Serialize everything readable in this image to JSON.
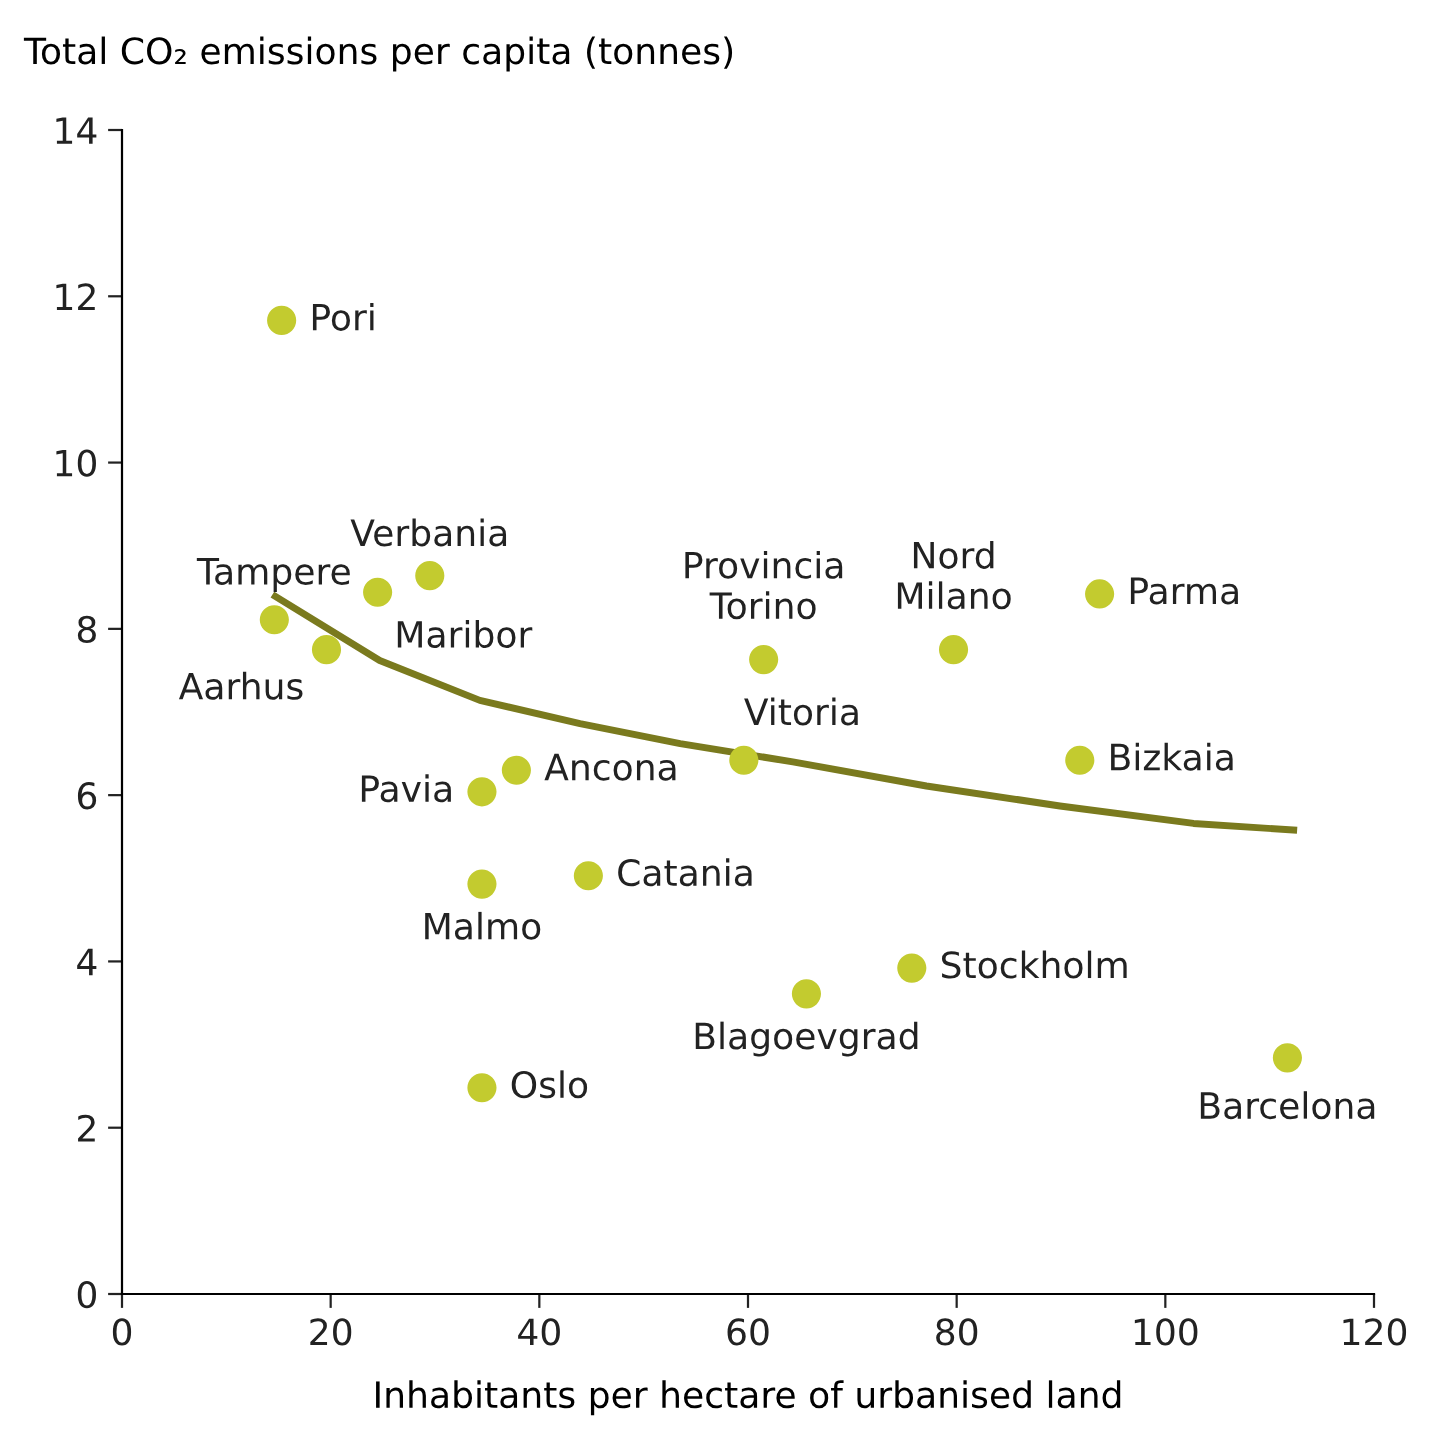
{
  "chart_data": {
    "type": "scatter",
    "xlabel": "Inhabitants per hectare of urbanised land",
    "ylabel": "Total CO₂ emissions per capita (tonnes)",
    "xlim": [
      0,
      120
    ],
    "xticks": [
      0,
      20,
      40,
      60,
      80,
      100,
      120
    ],
    "ylim": [
      0,
      14
    ],
    "yticks": [
      0,
      2,
      4,
      6,
      8,
      10,
      12,
      14
    ],
    "grid": false,
    "legend": false,
    "series": [
      {
        "type": "line",
        "color": "#7a7a1e",
        "line_style": "solid",
        "x": [
          14.7,
          24.7,
          34.3,
          43.9,
          53.5,
          64.3,
          77.1,
          89.9,
          102.7,
          112.3
        ],
        "values": [
          8.39,
          7.62,
          7.14,
          6.86,
          6.62,
          6.4,
          6.11,
          5.87,
          5.66,
          5.58
        ]
      },
      {
        "marker": "circle",
        "color": "#c3cb2f",
        "x": [
          15.3,
          14.6,
          19.6,
          24.5,
          29.5,
          34.5,
          37.8,
          34.5,
          44.7,
          34.5,
          61.5,
          59.6,
          79.7,
          93.7,
          91.8,
          75.7,
          65.6,
          111.7
        ],
        "values": [
          11.71,
          8.11,
          7.75,
          8.44,
          8.64,
          6.04,
          6.3,
          4.93,
          5.03,
          2.48,
          7.63,
          6.42,
          7.75,
          8.42,
          6.42,
          3.92,
          3.61,
          2.84
        ]
      }
    ],
    "annotations": [
      {
        "text": "Pori",
        "x": 15.3,
        "y": 11.71
      },
      {
        "text": "Tampere",
        "x": 14.6,
        "y": 8.11
      },
      {
        "text": "Aarhus",
        "x": 19.6,
        "y": 7.75
      },
      {
        "text": "Maribor",
        "x": 24.5,
        "y": 8.44
      },
      {
        "text": "Verbania",
        "x": 29.5,
        "y": 8.64
      },
      {
        "text": "Pavia",
        "x": 34.5,
        "y": 6.04
      },
      {
        "text": "Ancona",
        "x": 37.8,
        "y": 6.3
      },
      {
        "text": "Malmo",
        "x": 34.5,
        "y": 4.93
      },
      {
        "text": "Catania",
        "x": 44.7,
        "y": 5.03
      },
      {
        "text": "Oslo",
        "x": 34.5,
        "y": 2.48
      },
      {
        "text": "Provincia\nTorino",
        "x": 61.5,
        "y": 7.63
      },
      {
        "text": "Vitoria",
        "x": 59.6,
        "y": 6.42
      },
      {
        "text": "Nord\nMilano",
        "x": 79.7,
        "y": 7.75
      },
      {
        "text": "Parma",
        "x": 93.7,
        "y": 8.42
      },
      {
        "text": "Bizkaia",
        "x": 91.8,
        "y": 6.42
      },
      {
        "text": "Stockholm",
        "x": 75.7,
        "y": 3.92
      },
      {
        "text": "Blagoevgrad",
        "x": 65.6,
        "y": 3.61
      },
      {
        "text": "Barcelona",
        "x": 111.7,
        "y": 2.84
      }
    ]
  }
}
